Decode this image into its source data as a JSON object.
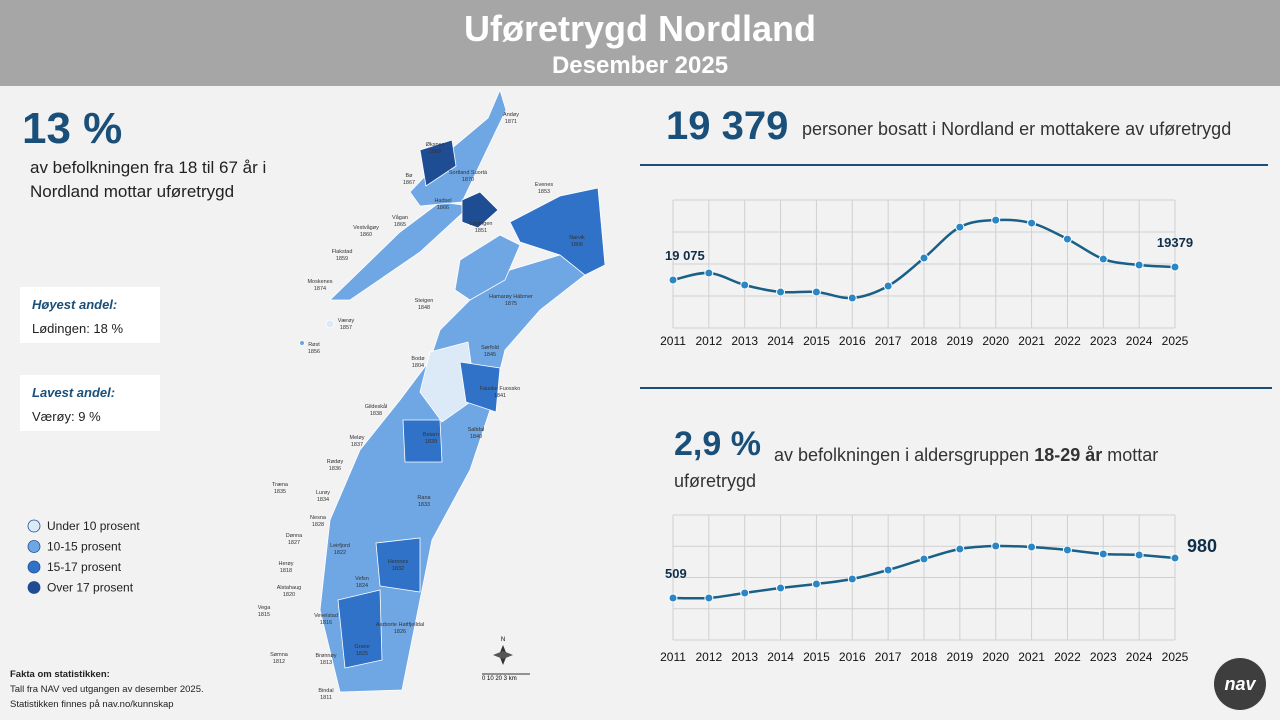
{
  "header": {
    "title": "Uføretrygd Nordland",
    "subtitle": "Desember 2025"
  },
  "left": {
    "big": "13 %",
    "text": "av befolkningen fra 18 til 67 år i Nordland mottar uføretrygd",
    "highest": {
      "title": "Høyest andel:",
      "value": "Lødingen: 18 %"
    },
    "lowest": {
      "title": "Lavest andel:",
      "value": "Værøy: 9 %"
    }
  },
  "legend": [
    {
      "label": "Under 10 prosent",
      "color": "#dce9f7"
    },
    {
      "label": "10-15 prosent",
      "color": "#6fa6e4"
    },
    {
      "label": "15-17 prosent",
      "color": "#2f72c8"
    },
    {
      "label": "Over 17 prosent",
      "color": "#1f4d94"
    }
  ],
  "facts": {
    "title": "Fakta om statistikken:",
    "lines": [
      "Tall fra NAV ved utgangen av desember 2025.",
      "Statistikken finnes på nav.no/kunnskap"
    ]
  },
  "map": {
    "labels": [
      [
        "Andøy",
        "1871"
      ],
      [
        "Øksnes",
        "1868"
      ],
      [
        "Bø",
        "1867"
      ],
      [
        "Sortland Suortá",
        "1870"
      ],
      [
        "Hadsel",
        "1866"
      ],
      [
        "Evenes",
        "1853"
      ],
      [
        "Vestvågøy",
        "1860"
      ],
      [
        "Vågan",
        "1865"
      ],
      [
        "Lødingen",
        "1851"
      ],
      [
        "Narvik",
        "1806"
      ],
      [
        "Flakstad",
        "1859"
      ],
      [
        "Moskenes",
        "1874"
      ],
      [
        "Steigen",
        "1848"
      ],
      [
        "Hamarøy Hábmer",
        "1875"
      ],
      [
        "Værøy",
        "1857"
      ],
      [
        "Røst",
        "1856"
      ],
      [
        "Sørfold",
        "1845"
      ],
      [
        "Bodø",
        "1804"
      ],
      [
        "Fauske Fuossko",
        "1841"
      ],
      [
        "Gildeskål",
        "1838"
      ],
      [
        "Saltdal",
        "1840"
      ],
      [
        "Beiarn",
        "1839"
      ],
      [
        "Meløy",
        "1837"
      ],
      [
        "Rødøy",
        "1836"
      ],
      [
        "Træna",
        "1835"
      ],
      [
        "Lurøy",
        "1834"
      ],
      [
        "Rana",
        "1833"
      ],
      [
        "Nesna",
        "1828"
      ],
      [
        "Dønna",
        "1827"
      ],
      [
        "Leirfjord",
        "1822"
      ],
      [
        "Hemnes",
        "1832"
      ],
      [
        "Herøy",
        "1818"
      ],
      [
        "Vefsn",
        "1824"
      ],
      [
        "Alstahaug",
        "1820"
      ],
      [
        "Vega",
        "1815"
      ],
      [
        "Vevelstad",
        "1816"
      ],
      [
        "Aarborte Hattfjelldal",
        "1826"
      ],
      [
        "Sømna",
        "1812"
      ],
      [
        "Brønnøy",
        "1813"
      ],
      [
        "Grane",
        "1825"
      ],
      [
        "Bindal",
        "1811"
      ]
    ],
    "compass": "N",
    "scale": "0  10  20   3 km"
  },
  "stat1": {
    "big": "19 379",
    "text": "personer bosatt i Nordland er mottakere av uføretrygd"
  },
  "stat2": {
    "big": "2,9 %",
    "before": "av befolkningen i aldersgruppen",
    "bold": "18-29 år",
    "after": "mottar uføretrygd"
  },
  "chart_data": [
    {
      "type": "line",
      "categories": [
        "2011",
        "2012",
        "2013",
        "2014",
        "2015",
        "2016",
        "2017",
        "2018",
        "2019",
        "2020",
        "2021",
        "2022",
        "2023",
        "2024",
        "2025"
      ],
      "values": [
        19075,
        19239,
        18958,
        18794,
        18794,
        18654,
        18935,
        19590,
        20315,
        20479,
        20409,
        20034,
        19566,
        19426,
        19379
      ],
      "value_labels": [
        "19 075",
        null,
        null,
        null,
        null,
        null,
        null,
        null,
        null,
        null,
        null,
        null,
        null,
        null,
        "19379"
      ],
      "color": "#1a5f86",
      "ylim": [
        17950,
        20950
      ],
      "grid": true
    },
    {
      "type": "line",
      "categories": [
        "2011",
        "2012",
        "2013",
        "2014",
        "2015",
        "2016",
        "2017",
        "2018",
        "2019",
        "2020",
        "2021",
        "2022",
        "2023",
        "2024",
        "2025"
      ],
      "values": [
        509,
        509,
        568,
        627,
        674,
        733,
        839,
        969,
        1087,
        1122,
        1110,
        1075,
        1028,
        1016,
        980
      ],
      "value_labels": [
        "509",
        null,
        null,
        null,
        null,
        null,
        null,
        null,
        null,
        null,
        null,
        null,
        null,
        null,
        "980"
      ],
      "color": "#1a5f86",
      "ylim": [
        13,
        1488
      ],
      "grid": true
    }
  ],
  "logo": "nav"
}
